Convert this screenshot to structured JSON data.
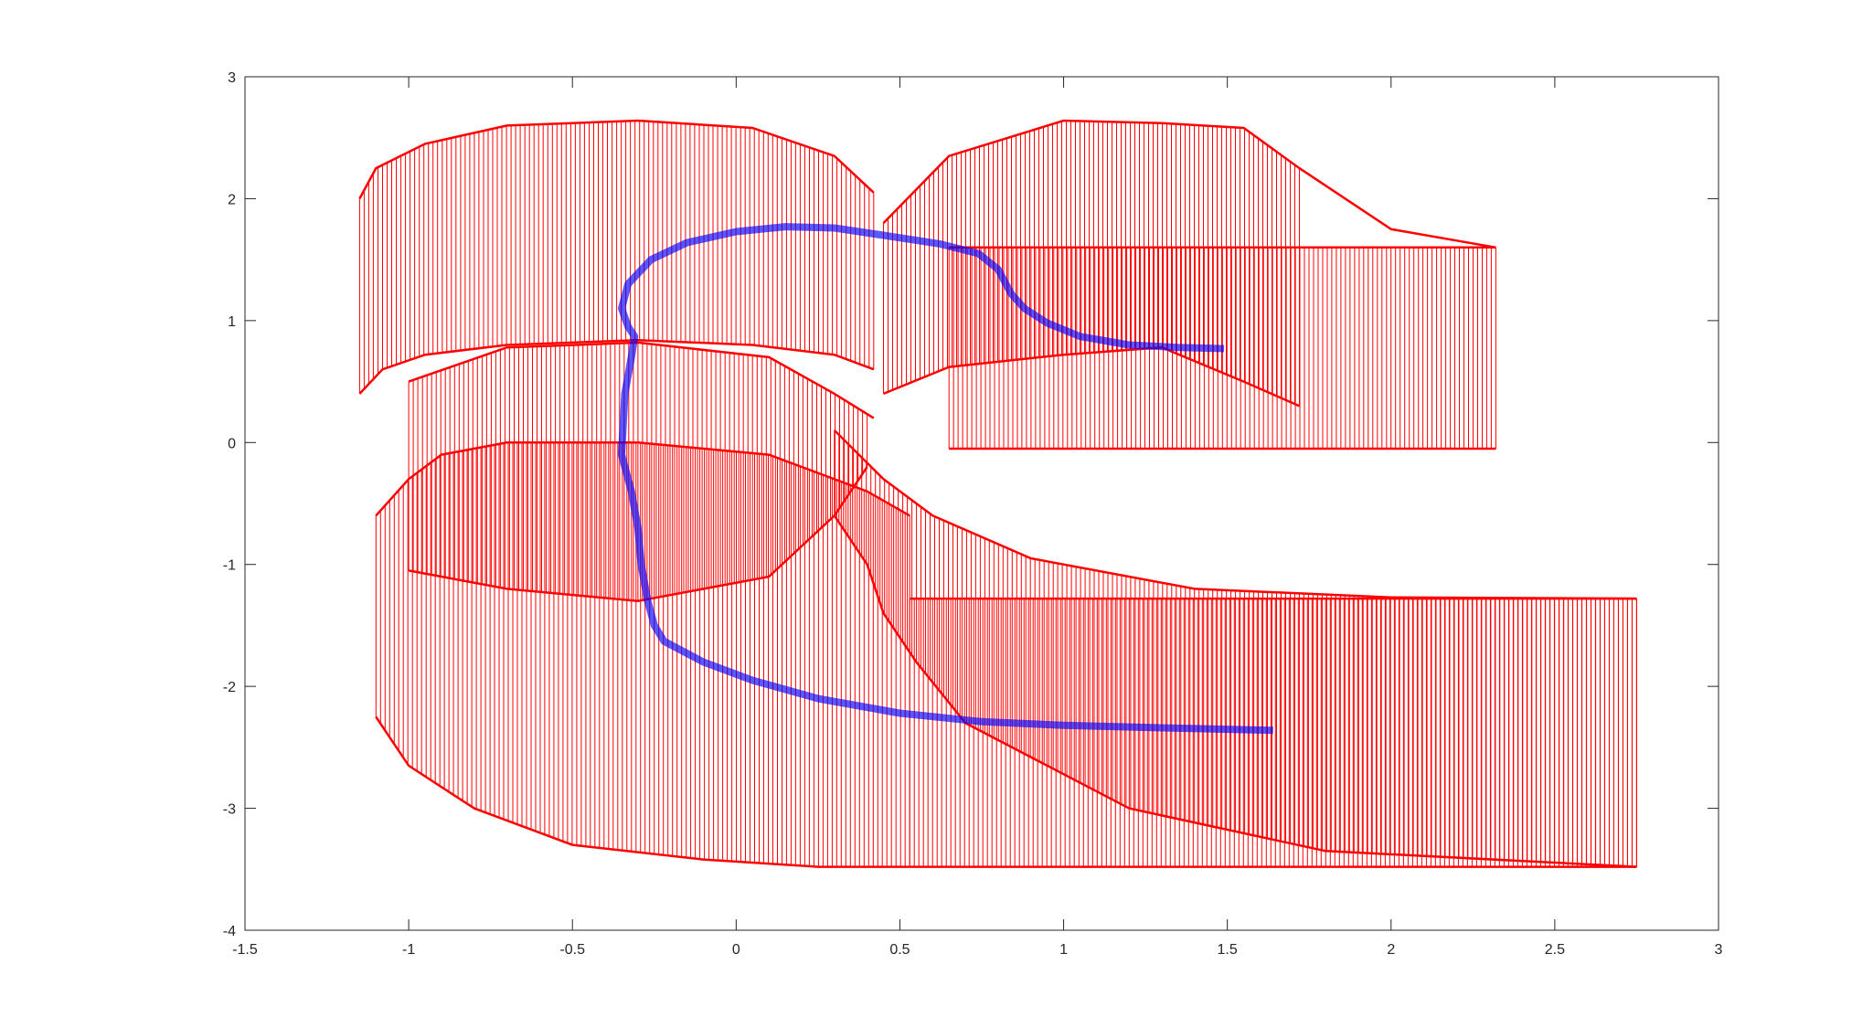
{
  "chart_data": {
    "type": "line",
    "title": "",
    "xlabel": "",
    "ylabel": "",
    "xlim": [
      -1.5,
      3
    ],
    "ylim": [
      -4,
      3
    ],
    "grid": false,
    "legend": "none",
    "x_ticks": [
      "-1.5",
      "-1",
      "-0.5",
      "0",
      "0.5",
      "1",
      "1.5",
      "2",
      "2.5",
      "3"
    ],
    "y_ticks": [
      "-4",
      "-3",
      "-2",
      "-1",
      "0",
      "1",
      "2",
      "3"
    ],
    "series": [
      {
        "color": "#0000ff",
        "points": [
          [
            1.49,
            0.77
          ],
          [
            1.35,
            0.78
          ],
          [
            1.2,
            0.8
          ],
          [
            1.05,
            0.87
          ],
          [
            0.95,
            0.98
          ],
          [
            0.88,
            1.1
          ],
          [
            0.84,
            1.22
          ],
          [
            0.8,
            1.42
          ],
          [
            0.74,
            1.55
          ],
          [
            0.62,
            1.63
          ],
          [
            0.45,
            1.7
          ],
          [
            0.3,
            1.76
          ],
          [
            0.15,
            1.77
          ],
          [
            0.0,
            1.73
          ],
          [
            -0.15,
            1.64
          ],
          [
            -0.26,
            1.5
          ],
          [
            -0.33,
            1.3
          ],
          [
            -0.35,
            1.1
          ],
          [
            -0.33,
            0.95
          ],
          [
            -0.31,
            0.87
          ],
          [
            -0.32,
            0.7
          ],
          [
            -0.34,
            0.4
          ],
          [
            -0.35,
            -0.1
          ],
          [
            -0.32,
            -0.4
          ],
          [
            -0.3,
            -0.7
          ],
          [
            -0.29,
            -1.0
          ],
          [
            -0.27,
            -1.3
          ],
          [
            -0.25,
            -1.5
          ],
          [
            -0.22,
            -1.63
          ],
          [
            -0.1,
            -1.8
          ],
          [
            0.05,
            -1.95
          ],
          [
            0.25,
            -2.1
          ],
          [
            0.5,
            -2.22
          ],
          [
            0.75,
            -2.29
          ],
          [
            1.0,
            -2.32
          ],
          [
            1.3,
            -2.34
          ],
          [
            1.64,
            -2.36
          ]
        ]
      },
      {
        "color": "#ff0000",
        "name": "upper-left lobe",
        "bottom": [
          [
            -1.15,
            0.4
          ],
          [
            -1.08,
            0.6
          ],
          [
            -0.95,
            0.72
          ],
          [
            -0.7,
            0.8
          ],
          [
            -0.3,
            0.84
          ],
          [
            0.05,
            0.8
          ],
          [
            0.3,
            0.72
          ],
          [
            0.42,
            0.6
          ]
        ],
        "top": [
          [
            -1.15,
            2.0
          ],
          [
            -1.1,
            2.25
          ],
          [
            -0.95,
            2.45
          ],
          [
            -0.7,
            2.6
          ],
          [
            -0.3,
            2.64
          ],
          [
            0.05,
            2.58
          ],
          [
            0.3,
            2.35
          ],
          [
            0.42,
            2.05
          ]
        ]
      },
      {
        "color": "#ff0000",
        "name": "upper-right band",
        "bottom": [
          [
            0.65,
            -0.05
          ],
          [
            1.0,
            -0.05
          ],
          [
            1.5,
            -0.05
          ],
          [
            2.0,
            -0.05
          ],
          [
            2.32,
            -0.05
          ]
        ],
        "top": [
          [
            0.65,
            1.6
          ],
          [
            1.0,
            1.6
          ],
          [
            1.5,
            1.6
          ],
          [
            2.0,
            1.6
          ],
          [
            2.32,
            1.6
          ]
        ]
      },
      {
        "color": "#ff0000",
        "name": "upper-right swept arc",
        "bottom": [
          [
            0.45,
            0.4
          ],
          [
            0.65,
            0.62
          ],
          [
            1.0,
            0.72
          ],
          [
            1.3,
            0.78
          ],
          [
            1.55,
            0.5
          ],
          [
            1.72,
            0.3
          ]
        ],
        "top": [
          [
            0.45,
            1.8
          ],
          [
            0.65,
            2.35
          ],
          [
            1.0,
            2.64
          ],
          [
            1.3,
            2.62
          ],
          [
            1.55,
            2.58
          ],
          [
            1.72,
            2.25
          ],
          [
            2.0,
            1.75
          ],
          [
            2.32,
            1.6
          ]
        ]
      },
      {
        "color": "#ff0000",
        "name": "middle band",
        "bottom": [
          [
            -1.0,
            -1.05
          ],
          [
            -0.7,
            -1.2
          ],
          [
            -0.3,
            -1.3
          ],
          [
            0.1,
            -1.1
          ],
          [
            0.3,
            -0.6
          ],
          [
            0.4,
            -0.2
          ]
        ],
        "top": [
          [
            -1.0,
            0.5
          ],
          [
            -0.7,
            0.78
          ],
          [
            -0.3,
            0.82
          ],
          [
            0.1,
            0.7
          ],
          [
            0.3,
            0.4
          ],
          [
            0.42,
            0.2
          ]
        ]
      },
      {
        "color": "#ff0000",
        "name": "lower-left lobe",
        "bottom": [
          [
            -1.1,
            -2.25
          ],
          [
            -1.0,
            -2.65
          ],
          [
            -0.8,
            -3.0
          ],
          [
            -0.5,
            -3.3
          ],
          [
            -0.1,
            -3.42
          ],
          [
            0.25,
            -3.48
          ],
          [
            0.53,
            -3.48
          ]
        ],
        "top": [
          [
            -1.1,
            -0.6
          ],
          [
            -1.0,
            -0.3
          ],
          [
            -0.9,
            -0.1
          ],
          [
            -0.7,
            0.0
          ],
          [
            -0.3,
            0.0
          ],
          [
            0.1,
            -0.1
          ],
          [
            0.4,
            -0.4
          ],
          [
            0.53,
            -0.6
          ]
        ]
      },
      {
        "color": "#ff0000",
        "name": "lower-right band",
        "bottom": [
          [
            0.53,
            -3.48
          ],
          [
            1.0,
            -3.48
          ],
          [
            1.5,
            -3.48
          ],
          [
            2.0,
            -3.48
          ],
          [
            2.5,
            -3.48
          ],
          [
            2.75,
            -3.48
          ]
        ],
        "top": [
          [
            0.53,
            -1.28
          ],
          [
            1.0,
            -1.28
          ],
          [
            1.5,
            -1.28
          ],
          [
            2.0,
            -1.28
          ],
          [
            2.5,
            -1.28
          ],
          [
            2.75,
            -1.28
          ]
        ]
      },
      {
        "color": "#ff0000",
        "name": "lower-middle swept arc",
        "bottom": [
          [
            0.3,
            -0.6
          ],
          [
            0.4,
            -1.0
          ],
          [
            0.45,
            -1.4
          ],
          [
            0.55,
            -1.8
          ],
          [
            0.7,
            -2.3
          ],
          [
            1.2,
            -3.0
          ],
          [
            1.8,
            -3.35
          ],
          [
            2.75,
            -3.48
          ]
        ],
        "top": [
          [
            0.3,
            0.1
          ],
          [
            0.45,
            -0.3
          ],
          [
            0.6,
            -0.6
          ],
          [
            0.9,
            -0.95
          ],
          [
            1.4,
            -1.2
          ],
          [
            2.0,
            -1.27
          ],
          [
            2.75,
            -1.28
          ]
        ]
      }
    ]
  }
}
